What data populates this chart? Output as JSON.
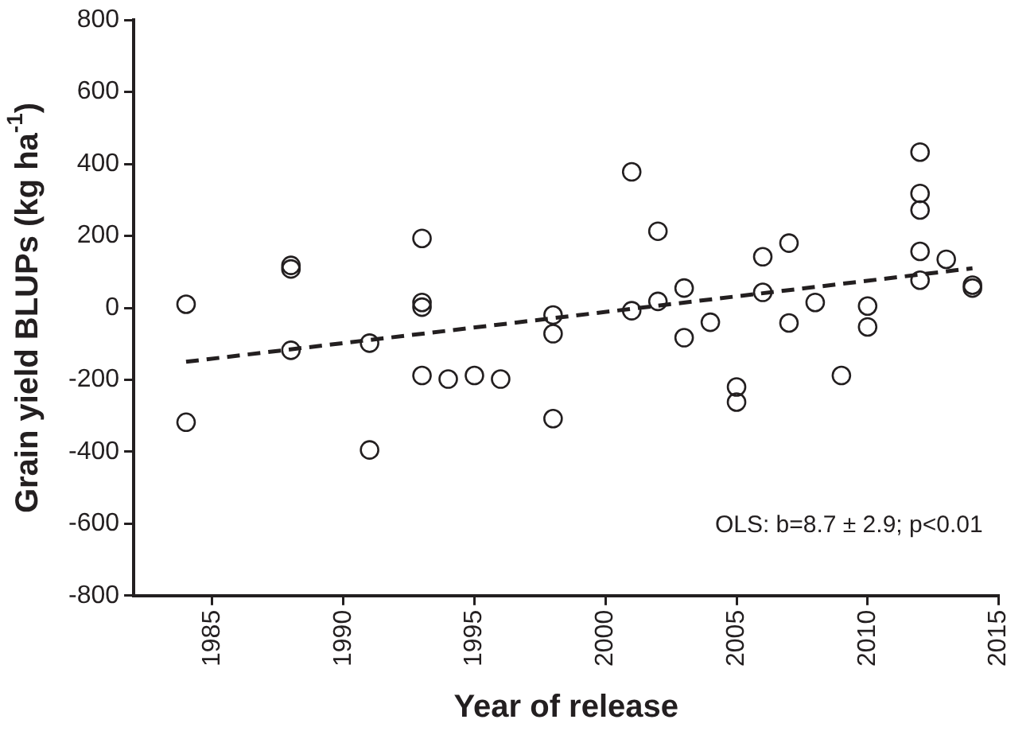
{
  "chart_data": {
    "type": "scatter",
    "xlabel": "Year of release",
    "ylabel": "Grain yield BLUPs (kg ha$^{-1}$)",
    "annotations": [
      "OLS: b=8.7 ± 2.9; p<0.01"
    ],
    "xlim": [
      1982,
      2015
    ],
    "xticks": [
      1985,
      1990,
      1995,
      2000,
      2005,
      2010,
      2015
    ],
    "ylim": [
      -800,
      800
    ],
    "yticks": [
      -800,
      -600,
      -400,
      -200,
      0,
      200,
      400,
      600,
      800
    ],
    "grid": false,
    "legend": false,
    "marker": "circle",
    "series": [
      {
        "color": "#231f20",
        "x": [
          1984,
          1984,
          1988,
          1988,
          1988,
          1991,
          1991,
          1993,
          1993,
          1993,
          1993,
          1994,
          1995,
          1996,
          1998,
          1998,
          1998,
          2001,
          2001,
          2002,
          2002,
          2003,
          2003,
          2004,
          2005,
          2005,
          2006,
          2006,
          2007,
          2007,
          2008,
          2009,
          2010,
          2010,
          2012,
          2012,
          2012,
          2012,
          2012,
          2013,
          2014,
          2014
        ],
        "values": [
          10,
          -318,
          118,
          108,
          -118,
          -98,
          -395,
          193,
          15,
          2,
          -188,
          -198,
          -188,
          -198,
          -20,
          -72,
          -308,
          378,
          -8,
          213,
          18,
          55,
          -83,
          -40,
          -220,
          -262,
          142,
          43,
          180,
          -42,
          15,
          -188,
          5,
          -53,
          433,
          318,
          272,
          157,
          77,
          135,
          63,
          55
        ]
      },
      {
        "type": "line",
        "color": "#231f20",
        "line_style": "dashed",
        "marker": "none",
        "x": [
          1984,
          2014
        ],
        "values": [
          -150,
          110
        ]
      }
    ]
  }
}
